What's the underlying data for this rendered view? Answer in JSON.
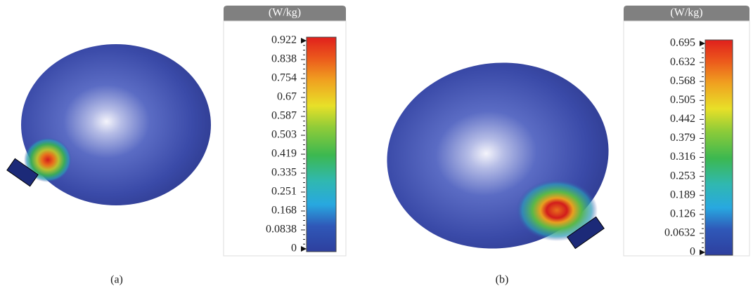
{
  "panels": [
    {
      "unit": "(W/kg)",
      "ticks": [
        "0.922",
        "0.838",
        "0.754",
        "0.67",
        "0.587",
        "0.503",
        "0.419",
        "0.335",
        "0.251",
        "0.168",
        "0.0838",
        "0"
      ],
      "caption": "(a)"
    },
    {
      "unit": "(W/kg)",
      "ticks": [
        "0.695",
        "0.632",
        "0.568",
        "0.505",
        "0.442",
        "0.379",
        "0.316",
        "0.253",
        "0.189",
        "0.126",
        "0.0632",
        "0"
      ],
      "caption": "(b)"
    }
  ]
}
